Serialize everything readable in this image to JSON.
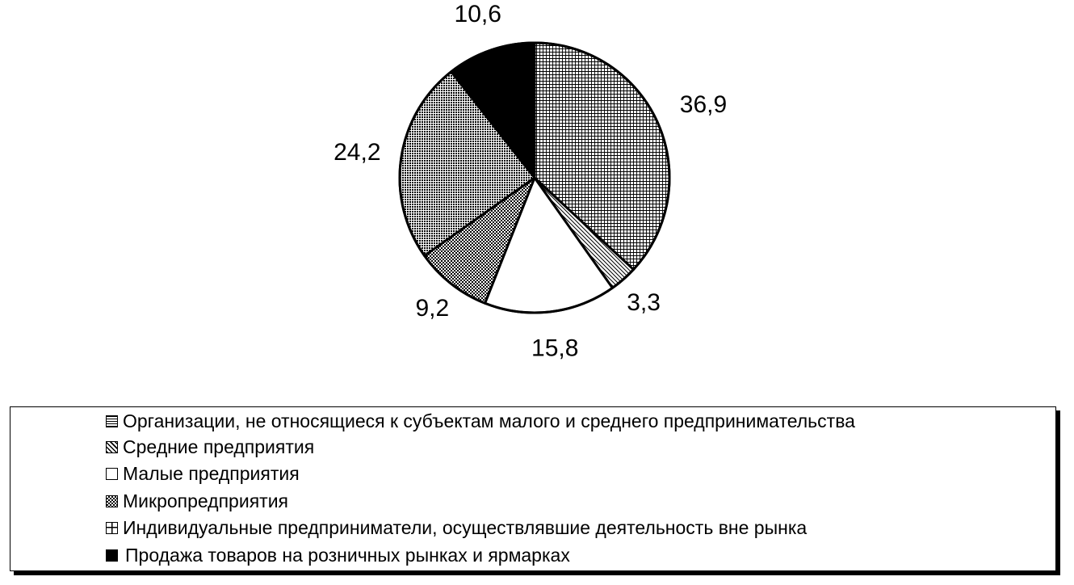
{
  "chart_data": {
    "type": "pie",
    "slices": [
      {
        "label": "Организации, не относящиеся к субъектам малого и среднего предпринимательства",
        "value": 36.9,
        "value_label": "36,9",
        "pattern": "dense-grid"
      },
      {
        "label": "Средние предприятия",
        "value": 3.3,
        "value_label": "3,3",
        "pattern": "diagonal"
      },
      {
        "label": "Малые предприятия",
        "value": 15.8,
        "value_label": "15,8",
        "pattern": "white"
      },
      {
        "label": "Микропредприятия",
        "value": 9.2,
        "value_label": "9,2",
        "pattern": "checker"
      },
      {
        "label": "Индивидуальные предприниматели, осуществлявшие деятельность вне рынка",
        "value": 24.2,
        "value_label": "24,2",
        "pattern": "medium-grid"
      },
      {
        "label": "Продажа товаров на розничных рынках и ярмарках",
        "value": 10.6,
        "value_label": "10,6",
        "pattern": "black"
      }
    ],
    "start_angle_deg": 0,
    "direction": "clockwise",
    "legend_position": "bottom"
  }
}
